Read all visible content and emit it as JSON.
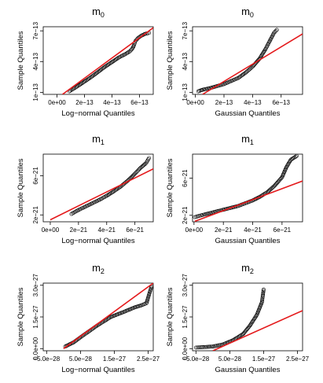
{
  "chart_data": [
    {
      "type": "scatter",
      "panel": "m0-lognormal",
      "title": "m",
      "title_sub": "0",
      "xlabel": "Log−normal Quantiles",
      "ylabel": "Sample Quantiles",
      "xlim": [
        -1e-13,
        7e-13
      ],
      "ylim": [
        8e-14,
        7.4e-13
      ],
      "xticks": [
        0,
        2e-13,
        4e-13,
        6e-13
      ],
      "xticklabels": [
        "0e+00",
        "2e−13",
        "4e−13",
        "6e−13"
      ],
      "yticks": [
        1e-13,
        4e-13,
        7e-13
      ],
      "yticklabels": [
        "1e−13",
        "4e−13",
        "7e−13"
      ],
      "ref_line": [
        [
          4e-14,
          8e-14
        ],
        [
          7e-13,
          7.3e-13
        ]
      ],
      "points": [
        [
          9e-14,
          1.1e-13
        ],
        [
          1.5e-13,
          1.6e-13
        ],
        [
          2e-13,
          2.05e-13
        ],
        [
          2.5e-13,
          2.5e-13
        ],
        [
          3e-13,
          3e-13
        ],
        [
          3.5e-13,
          3.5e-13
        ],
        [
          4e-13,
          3.95e-13
        ],
        [
          4.5e-13,
          4.4e-13
        ],
        [
          5e-13,
          4.75e-13
        ],
        [
          5.3e-13,
          5e-13
        ],
        [
          5.5e-13,
          5.3e-13
        ],
        [
          5.6e-13,
          5.6e-13
        ],
        [
          5.7e-13,
          6e-13
        ],
        [
          5.9e-13,
          6.3e-13
        ],
        [
          6.1e-13,
          6.5e-13
        ],
        [
          6.4e-13,
          6.7e-13
        ],
        [
          6.7e-13,
          6.8e-13
        ]
      ]
    },
    {
      "type": "scatter",
      "panel": "m0-gaussian",
      "title": "m",
      "title_sub": "0",
      "xlabel": "Gaussian Quantiles",
      "ylabel": "Sample Quantiles",
      "xlim": [
        -2e-14,
        7.5e-13
      ],
      "ylim": [
        8e-14,
        7.4e-13
      ],
      "xticks": [
        0,
        2e-13,
        4e-13,
        6e-13
      ],
      "xticklabels": [
        "0e+00",
        "2e−13",
        "4e−13",
        "6e−13"
      ],
      "yticks": [
        1e-13,
        4e-13,
        7e-13
      ],
      "yticklabels": [
        "1e−13",
        "4e−13",
        "7e−13"
      ],
      "ref_line": [
        [
          5e-14,
          8e-14
        ],
        [
          7.5e-13,
          6.7e-13
        ]
      ],
      "points": [
        [
          2e-14,
          1.1e-13
        ],
        [
          5e-14,
          1.25e-13
        ],
        [
          1e-13,
          1.4e-13
        ],
        [
          1.5e-13,
          1.6e-13
        ],
        [
          2e-13,
          1.8e-13
        ],
        [
          2.5e-13,
          2.1e-13
        ],
        [
          3e-13,
          2.4e-13
        ],
        [
          3.5e-13,
          2.9e-13
        ],
        [
          4e-13,
          3.5e-13
        ],
        [
          4.5e-13,
          4.3e-13
        ],
        [
          4.9e-13,
          5.2e-13
        ],
        [
          5.2e-13,
          6e-13
        ],
        [
          5.5e-13,
          6.8e-13
        ],
        [
          5.7e-13,
          7.1e-13
        ]
      ]
    },
    {
      "type": "scatter",
      "panel": "m1-lognormal",
      "title": "m",
      "title_sub": "1",
      "xlabel": "Log−normal Quantiles",
      "ylabel": "Sample Quantiles",
      "xlim": [
        -5e-22,
        7.3e-21
      ],
      "ylim": [
        1.3e-21,
        8.2e-21
      ],
      "xticks": [
        0,
        2e-21,
        4e-21,
        6e-21
      ],
      "xticklabels": [
        "0e+00",
        "2e−21",
        "4e−21",
        "6e−21"
      ],
      "yticks": [
        2e-21,
        6e-21
      ],
      "yticklabels": [
        "2e−21",
        "6e−21"
      ],
      "ref_line": [
        [
          0,
          1.5e-21
        ],
        [
          7.3e-21,
          6.7e-21
        ]
      ],
      "points": [
        [
          1.5e-21,
          2.1e-21
        ],
        [
          2e-21,
          2.5e-21
        ],
        [
          2.5e-21,
          2.85e-21
        ],
        [
          3e-21,
          3.2e-21
        ],
        [
          3.5e-21,
          3.55e-21
        ],
        [
          4e-21,
          3.95e-21
        ],
        [
          4.5e-21,
          4.4e-21
        ],
        [
          5e-21,
          4.9e-21
        ],
        [
          5.5e-21,
          5.5e-21
        ],
        [
          6e-21,
          6.2e-21
        ],
        [
          6.4e-21,
          6.8e-21
        ],
        [
          6.8e-21,
          7.3e-21
        ],
        [
          7e-21,
          7.8e-21
        ]
      ]
    },
    {
      "type": "scatter",
      "panel": "m1-gaussian",
      "title": "m",
      "title_sub": "1",
      "xlabel": "Gaussian Quantiles",
      "ylabel": "Sample Quantiles",
      "xlim": [
        -1e-22,
        7.4e-21
      ],
      "ylim": [
        1.3e-21,
        8.6e-21
      ],
      "xticks": [
        0,
        2e-21,
        4e-21,
        6e-21
      ],
      "xticklabels": [
        "0e+00",
        "2e−21",
        "4e−21",
        "6e−21"
      ],
      "yticks": [
        2e-21,
        6e-21
      ],
      "yticklabels": [
        "2e−21",
        "6e−21"
      ],
      "ref_line": [
        [
          5e-23,
          1.35e-21
        ],
        [
          7.4e-21,
          5.7e-21
        ]
      ],
      "points": [
        [
          5e-23,
          1.8e-21
        ],
        [
          5e-22,
          2e-21
        ],
        [
          1e-21,
          2.2e-21
        ],
        [
          2e-21,
          2.6e-21
        ],
        [
          3e-21,
          3e-21
        ],
        [
          3.5e-21,
          3.3e-21
        ],
        [
          4e-21,
          3.6e-21
        ],
        [
          4.5e-21,
          4e-21
        ],
        [
          5e-21,
          4.5e-21
        ],
        [
          5.5e-21,
          5.2e-21
        ],
        [
          6e-21,
          6.1e-21
        ],
        [
          6.3e-21,
          7.2e-21
        ],
        [
          6.6e-21,
          8e-21
        ],
        [
          7e-21,
          8.4e-21
        ]
      ]
    },
    {
      "type": "scatter",
      "panel": "m2-lognormal",
      "title": "m",
      "title_sub": "2",
      "xlabel": "Log−normal Quantiles",
      "ylabel": "Sample Quantiles",
      "xlim": [
        -6e-28,
        2.65e-27
      ],
      "ylim": [
        -1e-28,
        3.1e-27
      ],
      "xticks": [
        -5e-28,
        5e-28,
        1.5e-27,
        2.5e-27
      ],
      "xticklabels": [
        "−5.0e−28",
        "5.0e−28",
        "1.5e−27",
        "2.5e−27"
      ],
      "yticks": [
        0,
        1.5e-27,
        3e-27
      ],
      "yticklabels": [
        "0.0e+00",
        "1.5e−27",
        "3.0e−27"
      ],
      "ref_line": [
        [
          0,
          0
        ],
        [
          2.65e-27,
          3.1e-27
        ]
      ],
      "points": [
        [
          5e-29,
          1e-28
        ],
        [
          3e-28,
          3e-28
        ],
        [
          6e-28,
          6.5e-28
        ],
        [
          1e-27,
          1.1e-27
        ],
        [
          1.4e-27,
          1.5e-27
        ],
        [
          1.8e-27,
          1.75e-27
        ],
        [
          2.1e-27,
          1.95e-27
        ],
        [
          2.3e-27,
          2.05e-27
        ],
        [
          2.45e-27,
          2.15e-27
        ],
        [
          2.6e-27,
          2.95e-27
        ]
      ]
    },
    {
      "type": "scatter",
      "panel": "m2-gaussian",
      "title": "m",
      "title_sub": "2",
      "xlabel": "Gaussian Quantiles",
      "ylabel": "Sample Quantiles",
      "xlim": [
        -6e-28,
        2.65e-27
      ],
      "ylim": [
        -1e-28,
        3.1e-27
      ],
      "xticks": [
        -5e-28,
        5e-28,
        1.5e-27,
        2.5e-27
      ],
      "xticklabels": [
        "−5.0e−28",
        "5.0e−28",
        "1.5e−27",
        "2.5e−27"
      ],
      "yticks": [
        0,
        1.5e-27,
        3e-27
      ],
      "yticklabels": [
        "0.0e+00",
        "1.5e−27",
        "3.0e−27"
      ],
      "ref_line": [
        [
          0,
          -1e-28
        ],
        [
          2.65e-27,
          1.8e-27
        ]
      ],
      "points": [
        [
          -5e-28,
          5e-29
        ],
        [
          -3e-28,
          7e-29
        ],
        [
          0,
          1e-28
        ],
        [
          3e-28,
          2e-28
        ],
        [
          6e-28,
          4e-28
        ],
        [
          9e-28,
          7e-28
        ],
        [
          1.1e-27,
          1.1e-27
        ],
        [
          1.3e-27,
          1.6e-27
        ],
        [
          1.45e-27,
          2.2e-27
        ],
        [
          1.5e-27,
          2.8e-27
        ]
      ]
    }
  ]
}
